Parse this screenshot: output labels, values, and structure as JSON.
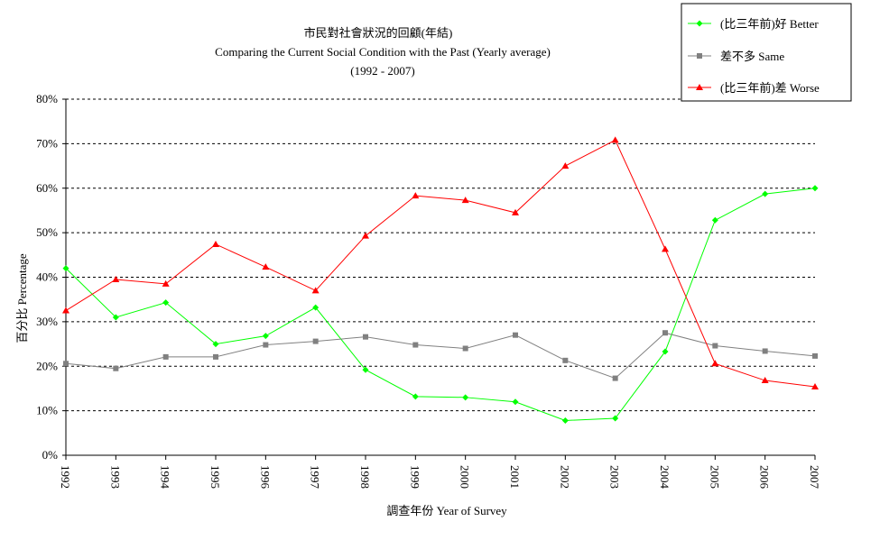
{
  "chart_data": {
    "type": "line",
    "title": "市民對社會狀況的回顧(年結)",
    "subtitle": "Comparing the Current Social Condition with the Past  (Yearly average)",
    "subtitle2": "(1992 - 2007)",
    "xlabel": "調查年份 Year of Survey",
    "ylabel": "百分比 Percentage",
    "ylim": [
      0,
      80
    ],
    "yticks": [
      "0%",
      "10%",
      "20%",
      "30%",
      "40%",
      "50%",
      "60%",
      "70%",
      "80%"
    ],
    "categories": [
      "1992",
      "1993",
      "1994",
      "1995",
      "1996",
      "1997",
      "1998",
      "1999",
      "2000",
      "2001",
      "2002",
      "2003",
      "2004",
      "2005",
      "2006",
      "2007"
    ],
    "grid": "horizontal-dashed",
    "legend": "top-right",
    "series": [
      {
        "name": "(比三年前)好 Better",
        "color": "#00ff00",
        "marker": "diamond",
        "values": [
          42,
          31,
          34.3,
          25,
          26.8,
          33.2,
          19.2,
          13.2,
          13,
          12,
          7.8,
          8.3,
          23.3,
          52.8,
          58.7,
          60
        ]
      },
      {
        "name": "差不多 Same",
        "color": "#808080",
        "marker": "square",
        "values": [
          20.6,
          19.5,
          22.1,
          22.1,
          24.8,
          25.6,
          26.6,
          24.8,
          24,
          27,
          21.3,
          17.3,
          27.5,
          24.6,
          23.4,
          22.3
        ]
      },
      {
        "name": "(比三年前)差 Worse",
        "color": "#ff0000",
        "marker": "triangle",
        "values": [
          32.5,
          39.5,
          38.5,
          47.4,
          42.3,
          37,
          49.3,
          58.3,
          57.3,
          54.5,
          65,
          70.8,
          46.3,
          20.6,
          16.8,
          15.4
        ]
      }
    ]
  }
}
